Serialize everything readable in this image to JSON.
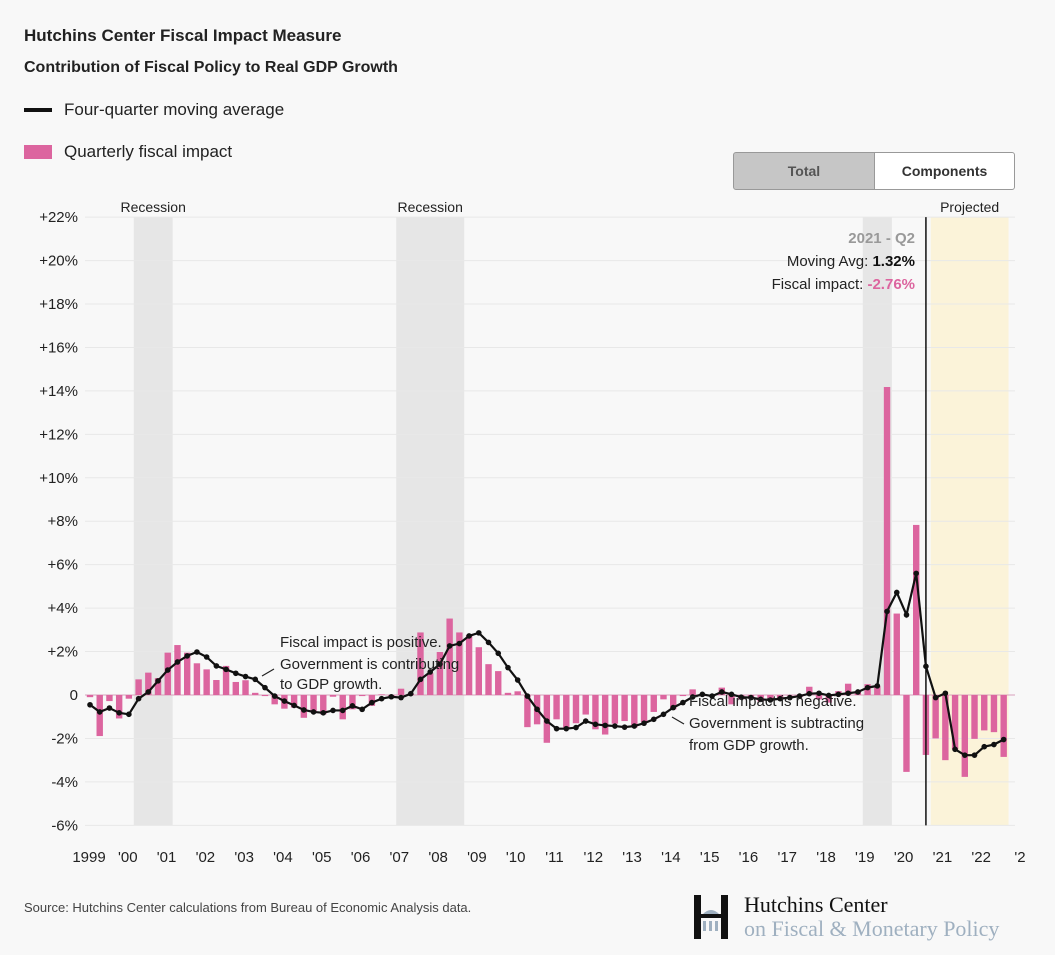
{
  "header": {
    "title": "Hutchins Center Fiscal Impact Measure",
    "subtitle": "Contribution of Fiscal Policy to Real GDP Growth"
  },
  "legend": [
    {
      "label": "Four-quarter moving average",
      "color": "#111111"
    },
    {
      "label": "Quarterly fiscal impact",
      "color": "#dc659f"
    }
  ],
  "toggle": {
    "total_label": "Total",
    "components_label": "Components",
    "active": "Total"
  },
  "tooltip": {
    "period": "2021 - Q2",
    "moving_avg_label": "Moving Avg: ",
    "moving_avg_value": "1.32%",
    "fiscal_label": "Fiscal impact: ",
    "fiscal_value": "-2.76%"
  },
  "annotations": {
    "positive": [
      "Fiscal impact is positive.",
      "Government is contributing",
      "to GDP growth."
    ],
    "negative": [
      "Fiscal impact is negative.",
      "Government is subtracting",
      "from GDP growth."
    ]
  },
  "source": "Source: Hutchins Center calculations from Bureau of Economic Analysis data.",
  "logo": {
    "line1": "Hutchins Center",
    "line2": "on Fiscal & Monetary Policy"
  },
  "chart_data": {
    "type": "bar+line",
    "first_quarter": "1999-Q4",
    "last_quarter": "2023-Q2",
    "ylim": [
      -6,
      22
    ],
    "y_ticks": [
      22,
      20,
      18,
      16,
      14,
      12,
      10,
      8,
      6,
      4,
      2,
      0,
      -2,
      -4,
      -6
    ],
    "y_tick_labels": [
      "+22%",
      "+20%",
      "+18%",
      "+16%",
      "+14%",
      "+12%",
      "+10%",
      "+8%",
      "+6%",
      "+4%",
      "+2%",
      "0",
      "-2%",
      "-4%",
      "-6%"
    ],
    "x_tick_labels": [
      "1999",
      "'00",
      "'01",
      "'02",
      "'03",
      "'04",
      "'05",
      "'06",
      "'07",
      "'08",
      "'09",
      "'10",
      "'11",
      "'12",
      "'13",
      "'14",
      "'15",
      "'16",
      "'17",
      "'18",
      "'19",
      "'20",
      "'21",
      "'22",
      "'2"
    ],
    "grid": true,
    "recessions": [
      {
        "label": "Recession",
        "start": "2001-Q1",
        "end": "2001-Q4"
      },
      {
        "label": "Recession",
        "start": "2007-Q4",
        "end": "2009-Q2"
      },
      {
        "label": "",
        "start": "2019-Q4",
        "end": "2020-Q2"
      }
    ],
    "projected": {
      "label": "Projected",
      "start": "2021-Q3",
      "end": "2023-Q2"
    },
    "highlight": "2021-Q2",
    "series": [
      {
        "name": "Quarterly fiscal impact",
        "type": "bar",
        "color": "#dc659f",
        "values": [
          -0.1,
          -1.89,
          -0.28,
          -1.08,
          -0.17,
          0.72,
          1.03,
          0.78,
          1.95,
          2.3,
          1.95,
          1.46,
          1.18,
          0.69,
          1.34,
          0.6,
          0.68,
          0.1,
          -0.05,
          -0.43,
          -0.63,
          -0.58,
          -1.05,
          -0.74,
          -0.89,
          -0.08,
          -1.12,
          -0.66,
          -0.05,
          -0.5,
          0.03,
          -0.05,
          0.29,
          0.05,
          2.88,
          1.0,
          1.98,
          3.52,
          2.88,
          2.75,
          2.2,
          1.42,
          1.1,
          0.1,
          0.17,
          -1.48,
          -1.35,
          -2.2,
          -1.12,
          -1.5,
          -1.3,
          -0.9,
          -1.58,
          -1.82,
          -1.32,
          -1.2,
          -1.5,
          -1.25,
          -0.78,
          -0.2,
          -0.66,
          -0.05,
          0.26,
          -0.05,
          -0.05,
          0.34,
          -0.43,
          -0.2,
          -0.1,
          -0.3,
          -0.15,
          -0.2,
          0.0,
          -0.1,
          0.38,
          -0.2,
          -0.35,
          0.18,
          0.52,
          0.18,
          0.5,
          0.42,
          14.18,
          3.75,
          -3.54,
          7.83,
          -2.76,
          -2.0,
          -3.0,
          -2.5,
          -3.77,
          -2.02,
          -1.63,
          -1.71,
          -2.85
        ]
      },
      {
        "name": "Four-quarter moving average",
        "type": "line",
        "color": "#111111",
        "values": [
          -0.45,
          -0.78,
          -0.6,
          -0.82,
          -0.89,
          -0.17,
          0.14,
          0.65,
          1.15,
          1.52,
          1.8,
          1.98,
          1.75,
          1.34,
          1.18,
          1.0,
          0.85,
          0.72,
          0.34,
          -0.05,
          -0.28,
          -0.48,
          -0.69,
          -0.78,
          -0.82,
          -0.71,
          -0.71,
          -0.5,
          -0.66,
          -0.35,
          -0.17,
          -0.08,
          -0.12,
          0.06,
          0.72,
          1.06,
          1.42,
          2.26,
          2.37,
          2.72,
          2.86,
          2.42,
          1.92,
          1.26,
          0.69,
          -0.05,
          -0.66,
          -1.2,
          -1.55,
          -1.55,
          -1.5,
          -1.2,
          -1.35,
          -1.4,
          -1.43,
          -1.48,
          -1.43,
          -1.3,
          -1.12,
          -0.89,
          -0.58,
          -0.35,
          -0.09,
          0.03,
          -0.05,
          0.14,
          0.03,
          -0.1,
          -0.12,
          -0.2,
          -0.23,
          -0.17,
          -0.12,
          -0.05,
          0.06,
          0.08,
          -0.02,
          0.03,
          0.08,
          0.14,
          0.34,
          0.42,
          3.85,
          4.72,
          3.69,
          5.6,
          1.32,
          -0.12,
          0.08,
          -2.5,
          -2.77,
          -2.77,
          -2.38,
          -2.28,
          -2.05
        ]
      }
    ]
  }
}
